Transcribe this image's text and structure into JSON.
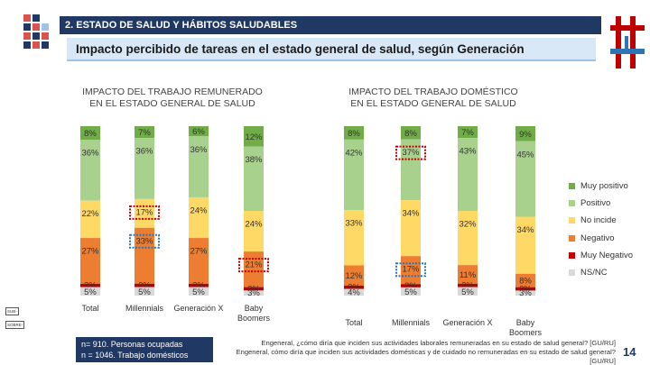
{
  "header": {
    "section": "2. ESTADO DE SALUD Y HÁBITOS SALUDABLES",
    "subtitle": "Impacto percibido de tareas en el estado general de salud, según Generación"
  },
  "colors": {
    "Muy positivo": "#70ad47",
    "Positivo": "#a9d18e",
    "No incide": "#ffd966",
    "Negativo": "#ed7d31",
    "Muy Negativo": "#c00000",
    "NS/NC": "#d9d9d9",
    "highlight_red": "#c00000",
    "highlight_blue": "#2e75b6"
  },
  "legend": [
    "Muy positivo",
    "Positivo",
    "No incide",
    "Negativo",
    "Muy Negativo",
    "NS/NC"
  ],
  "badges": [
    "SUB-",
    "SOBRE-"
  ],
  "chart_data": [
    {
      "type": "bar",
      "stacked": true,
      "title_line1": "IMPACTO DEL TRABAJO REMUNERADO",
      "title_line2": "EN EL ESTADO GENERAL DE SALUD",
      "categories": [
        "Total",
        "Millennials",
        "Generación X",
        "Baby Boomers"
      ],
      "series": [
        {
          "name": "Muy positivo",
          "values": [
            8,
            7,
            6,
            12
          ]
        },
        {
          "name": "Positivo",
          "values": [
            36,
            36,
            36,
            38
          ]
        },
        {
          "name": "No incide",
          "values": [
            22,
            17,
            24,
            24
          ]
        },
        {
          "name": "Negativo",
          "values": [
            27,
            33,
            27,
            21
          ]
        },
        {
          "name": "Muy Negativo",
          "values": [
            2,
            2,
            2,
            2
          ]
        },
        {
          "name": "NS/NC",
          "values": [
            5,
            5,
            5,
            3
          ]
        }
      ],
      "highlights": [
        {
          "category": "Millennials",
          "series": "No incide",
          "color": "red"
        },
        {
          "category": "Millennials",
          "series": "Negativo",
          "color": "blue"
        },
        {
          "category": "Baby Boomers",
          "series": "Negativo",
          "color": "red"
        }
      ]
    },
    {
      "type": "bar",
      "stacked": true,
      "title_line1": "IMPACTO DEL TRABAJO DOMÉSTICO",
      "title_line2": "EN EL ESTADO GENERAL DE SALUD",
      "categories": [
        "Total",
        "Millennials",
        "Generación X",
        "Baby Boomers"
      ],
      "series": [
        {
          "name": "Muy positivo",
          "values": [
            8,
            8,
            7,
            9
          ]
        },
        {
          "name": "Positivo",
          "values": [
            42,
            37,
            43,
            45
          ]
        },
        {
          "name": "No incide",
          "values": [
            33,
            34,
            32,
            34
          ]
        },
        {
          "name": "Negativo",
          "values": [
            12,
            17,
            11,
            8
          ]
        },
        {
          "name": "Muy Negativo",
          "values": [
            2,
            2,
            2,
            2
          ]
        },
        {
          "name": "NS/NC",
          "values": [
            4,
            5,
            5,
            3
          ]
        }
      ],
      "highlights": [
        {
          "category": "Millennials",
          "series": "Positivo",
          "color": "red"
        },
        {
          "category": "Millennials",
          "series": "Negativo",
          "color": "blue"
        }
      ]
    }
  ],
  "footer": {
    "note_line1": "n= 910. Personas ocupadas",
    "note_line2": "n = 1046. Trabajo domésticos",
    "question_line1": "Engeneral, ¿cómo diría que inciden sus actividades laborales remuneradas en su estado de salud general? [GU/RU]",
    "question_line2": "Engeneral, cómo diría que inciden sus actividades domésticas y de cuidado no remuneradas en su estado de salud general? [GU/RU]",
    "page": "14"
  }
}
